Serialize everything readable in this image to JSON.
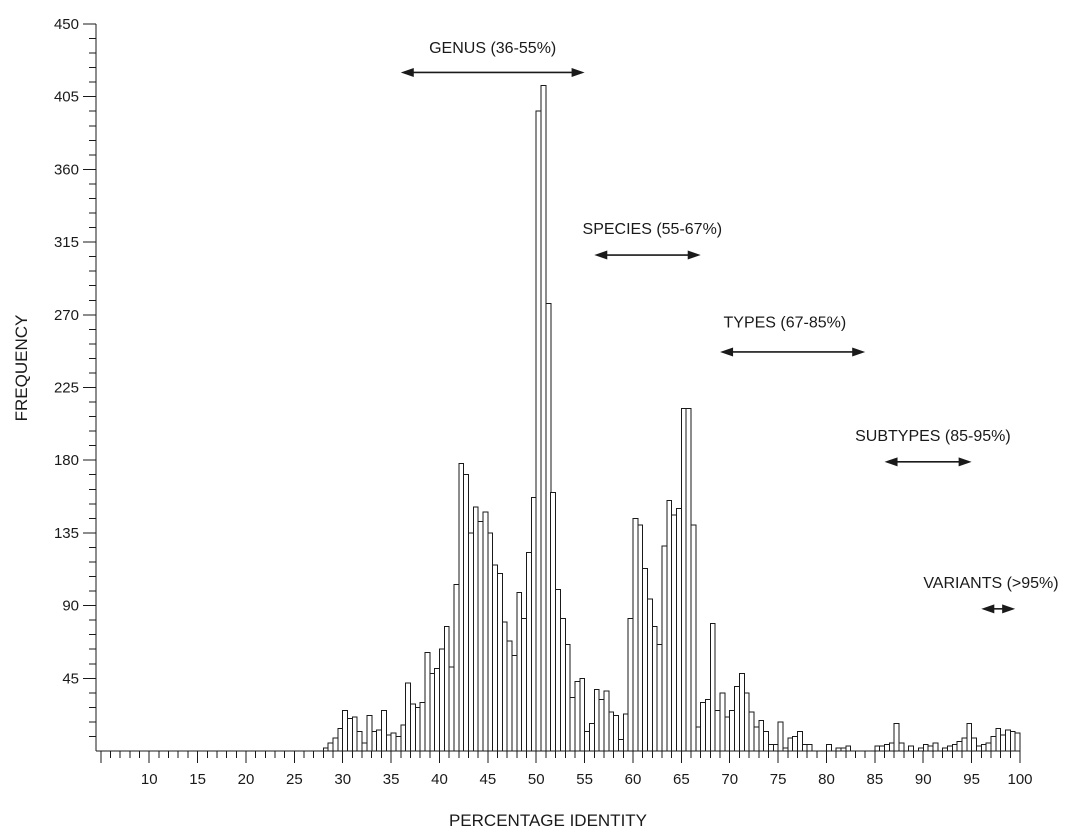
{
  "chart_data": {
    "type": "bar",
    "title": "",
    "xlabel": "PERCENTAGE IDENTITY",
    "ylabel": "FREQUENCY",
    "xlim": [
      0,
      100
    ],
    "ylim": [
      0,
      450
    ],
    "x_tick_labels": [
      10,
      15,
      20,
      25,
      30,
      35,
      40,
      45,
      50,
      55,
      60,
      65,
      70,
      75,
      80,
      85,
      90,
      95,
      100
    ],
    "y_tick_labels": [
      45,
      90,
      135,
      180,
      225,
      270,
      315,
      360,
      405,
      450
    ],
    "bin_width": 0.5,
    "x": [
      28,
      28.5,
      29,
      29.5,
      30,
      30.5,
      31,
      31.5,
      32,
      32.5,
      33,
      33.5,
      34,
      34.5,
      35,
      35.5,
      36,
      36.5,
      37,
      37.5,
      38,
      38.5,
      39,
      39.5,
      40,
      40.5,
      41,
      41.5,
      42,
      42.5,
      43,
      43.5,
      44,
      44.5,
      45,
      45.5,
      46,
      46.5,
      47,
      47.5,
      48,
      48.5,
      49,
      49.5,
      50,
      50.5,
      51,
      51.5,
      52,
      52.5,
      53,
      53.5,
      54,
      54.5,
      55,
      55.5,
      56,
      56.5,
      57,
      57.5,
      58,
      58.5,
      59,
      59.5,
      60,
      60.5,
      61,
      61.5,
      62,
      62.5,
      63,
      63.5,
      64,
      64.5,
      65,
      65.5,
      66,
      66.5,
      67,
      67.5,
      68,
      68.5,
      69,
      69.5,
      70,
      70.5,
      71,
      71.5,
      72,
      72.5,
      73,
      73.5,
      74,
      74.5,
      75,
      75.5,
      76,
      76.5,
      77,
      77.5,
      78,
      78.5,
      79,
      79.5,
      80,
      80.5,
      81,
      81.5,
      82,
      82.5,
      83,
      83.5,
      84,
      84.5,
      85,
      85.5,
      86,
      86.5,
      87,
      87.5,
      88,
      88.5,
      89,
      89.5,
      90,
      90.5,
      91,
      91.5,
      92,
      92.5,
      93,
      93.5,
      94,
      94.5,
      95,
      95.5,
      96,
      96.5,
      97,
      97.5,
      98,
      98.5,
      99,
      99.5
    ],
    "values": [
      2,
      5,
      8,
      14,
      25,
      20,
      21,
      12,
      5,
      22,
      12,
      13,
      25,
      10,
      11,
      9,
      16,
      42,
      29,
      27,
      30,
      61,
      48,
      51,
      63,
      77,
      52,
      103,
      178,
      171,
      135,
      151,
      142,
      148,
      135,
      115,
      110,
      80,
      68,
      59,
      98,
      82,
      123,
      157,
      396,
      412,
      277,
      160,
      100,
      82,
      66,
      33,
      43,
      45,
      12,
      17,
      38,
      32,
      37,
      24,
      22,
      7,
      23,
      82,
      144,
      140,
      113,
      94,
      77,
      66,
      127,
      155,
      146,
      150,
      212,
      212,
      140,
      15,
      30,
      32,
      79,
      25,
      36,
      21,
      25,
      40,
      48,
      36,
      24,
      15,
      19,
      12,
      4,
      4,
      18,
      2,
      8,
      9,
      12,
      4,
      4,
      0,
      0,
      0,
      4,
      0,
      2,
      2,
      3,
      0,
      0,
      0,
      0,
      0,
      3,
      3,
      4,
      5,
      17,
      5,
      0,
      3,
      0,
      2,
      4,
      3,
      5,
      0,
      2,
      3,
      4,
      6,
      8,
      17,
      8,
      3,
      4,
      5,
      9,
      14,
      10,
      13,
      12,
      11
    ],
    "annotations": [
      {
        "label": "GENUS (36-55%)",
        "from": 36,
        "to": 55,
        "y": 420,
        "label_x": 45.5,
        "label_y": 432
      },
      {
        "label": "SPECIES (55-67%)",
        "from": 56,
        "to": 67,
        "y": 307,
        "label_x": 62,
        "label_y": 320
      },
      {
        "label": "TYPES (67-85%)",
        "from": 69,
        "to": 84,
        "y": 247,
        "label_x": 75.7,
        "label_y": 262
      },
      {
        "label": "SUBTYPES (85-95%)",
        "from": 86,
        "to": 95,
        "y": 179,
        "label_x": 91,
        "label_y": 192
      },
      {
        "label": "VARIANTS (>95%)",
        "from": 96,
        "to": 99.5,
        "y": 88,
        "label_x": 97,
        "label_y": 101
      }
    ],
    "grid": false,
    "legend": "none"
  }
}
